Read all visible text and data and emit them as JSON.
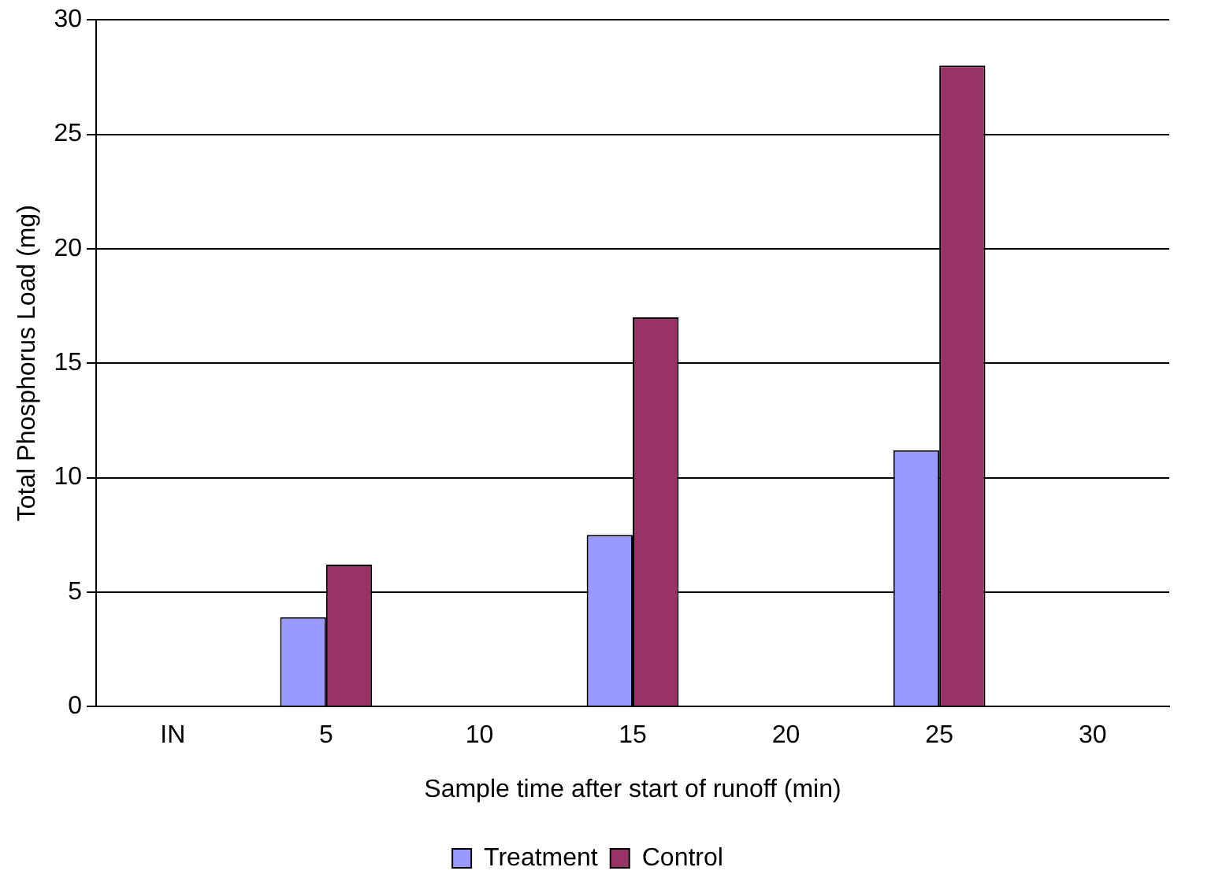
{
  "chart_data": {
    "type": "bar",
    "xlabel": "Sample time after start of runoff (min)",
    "ylabel": "Total Phosphorus Load (mg)",
    "categories": [
      "IN",
      "5",
      "10",
      "15",
      "20",
      "25",
      "30"
    ],
    "series": [
      {
        "name": "Treatment",
        "color": "#9999ff",
        "values": [
          null,
          3.9,
          null,
          7.5,
          null,
          11.2,
          null
        ]
      },
      {
        "name": "Control",
        "color": "#993366",
        "values": [
          null,
          6.2,
          null,
          17.0,
          null,
          28.0,
          null
        ]
      }
    ],
    "ylim": [
      0,
      30
    ],
    "yticks": [
      0,
      5,
      10,
      15,
      20,
      25,
      30
    ],
    "grid": "y",
    "legend": "bottom"
  }
}
